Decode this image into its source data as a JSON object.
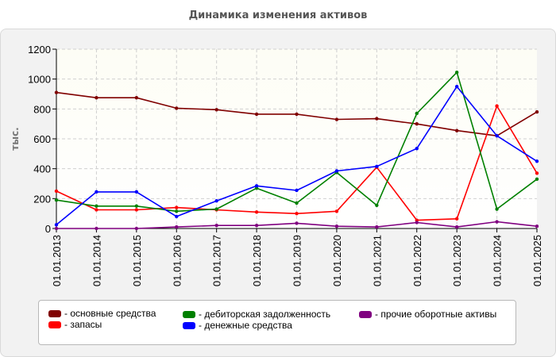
{
  "chart_data": {
    "type": "line",
    "title": "Динамика изменения активов",
    "ylabel": "тыс.",
    "xlabel": "",
    "ylim": [
      0,
      1200
    ],
    "yticks": [
      0,
      200,
      400,
      600,
      800,
      1000,
      1200
    ],
    "grid": true,
    "legend_position": "bottom",
    "categories": [
      "01.01.2013",
      "01.01.2014",
      "01.01.2015",
      "01.01.2016",
      "01.01.2017",
      "01.01.2018",
      "01.01.2019",
      "01.01.2020",
      "01.01.2021",
      "01.01.2022",
      "01.01.2023",
      "01.01.2024",
      "01.01.2025"
    ],
    "series": [
      {
        "name": "- основные средства",
        "color": "#800000",
        "values": [
          910,
          875,
          875,
          805,
          795,
          765,
          765,
          730,
          735,
          700,
          655,
          620,
          780
        ]
      },
      {
        "name": "- запасы",
        "color": "#ff0000",
        "values": [
          250,
          125,
          125,
          140,
          125,
          110,
          100,
          115,
          410,
          55,
          65,
          820,
          370
        ]
      },
      {
        "name": "- дебиторская задолженность",
        "color": "#008000",
        "values": [
          190,
          150,
          150,
          115,
          130,
          270,
          170,
          375,
          155,
          770,
          1045,
          130,
          330
        ]
      },
      {
        "name": "- денежные средства",
        "color": "#0000ff",
        "values": [
          25,
          245,
          245,
          80,
          185,
          285,
          255,
          385,
          415,
          535,
          950,
          620,
          450
        ]
      },
      {
        "name": "- прочие оборотные активы",
        "color": "#800080",
        "values": [
          0,
          0,
          0,
          10,
          20,
          20,
          35,
          15,
          10,
          40,
          10,
          45,
          15
        ]
      }
    ]
  }
}
